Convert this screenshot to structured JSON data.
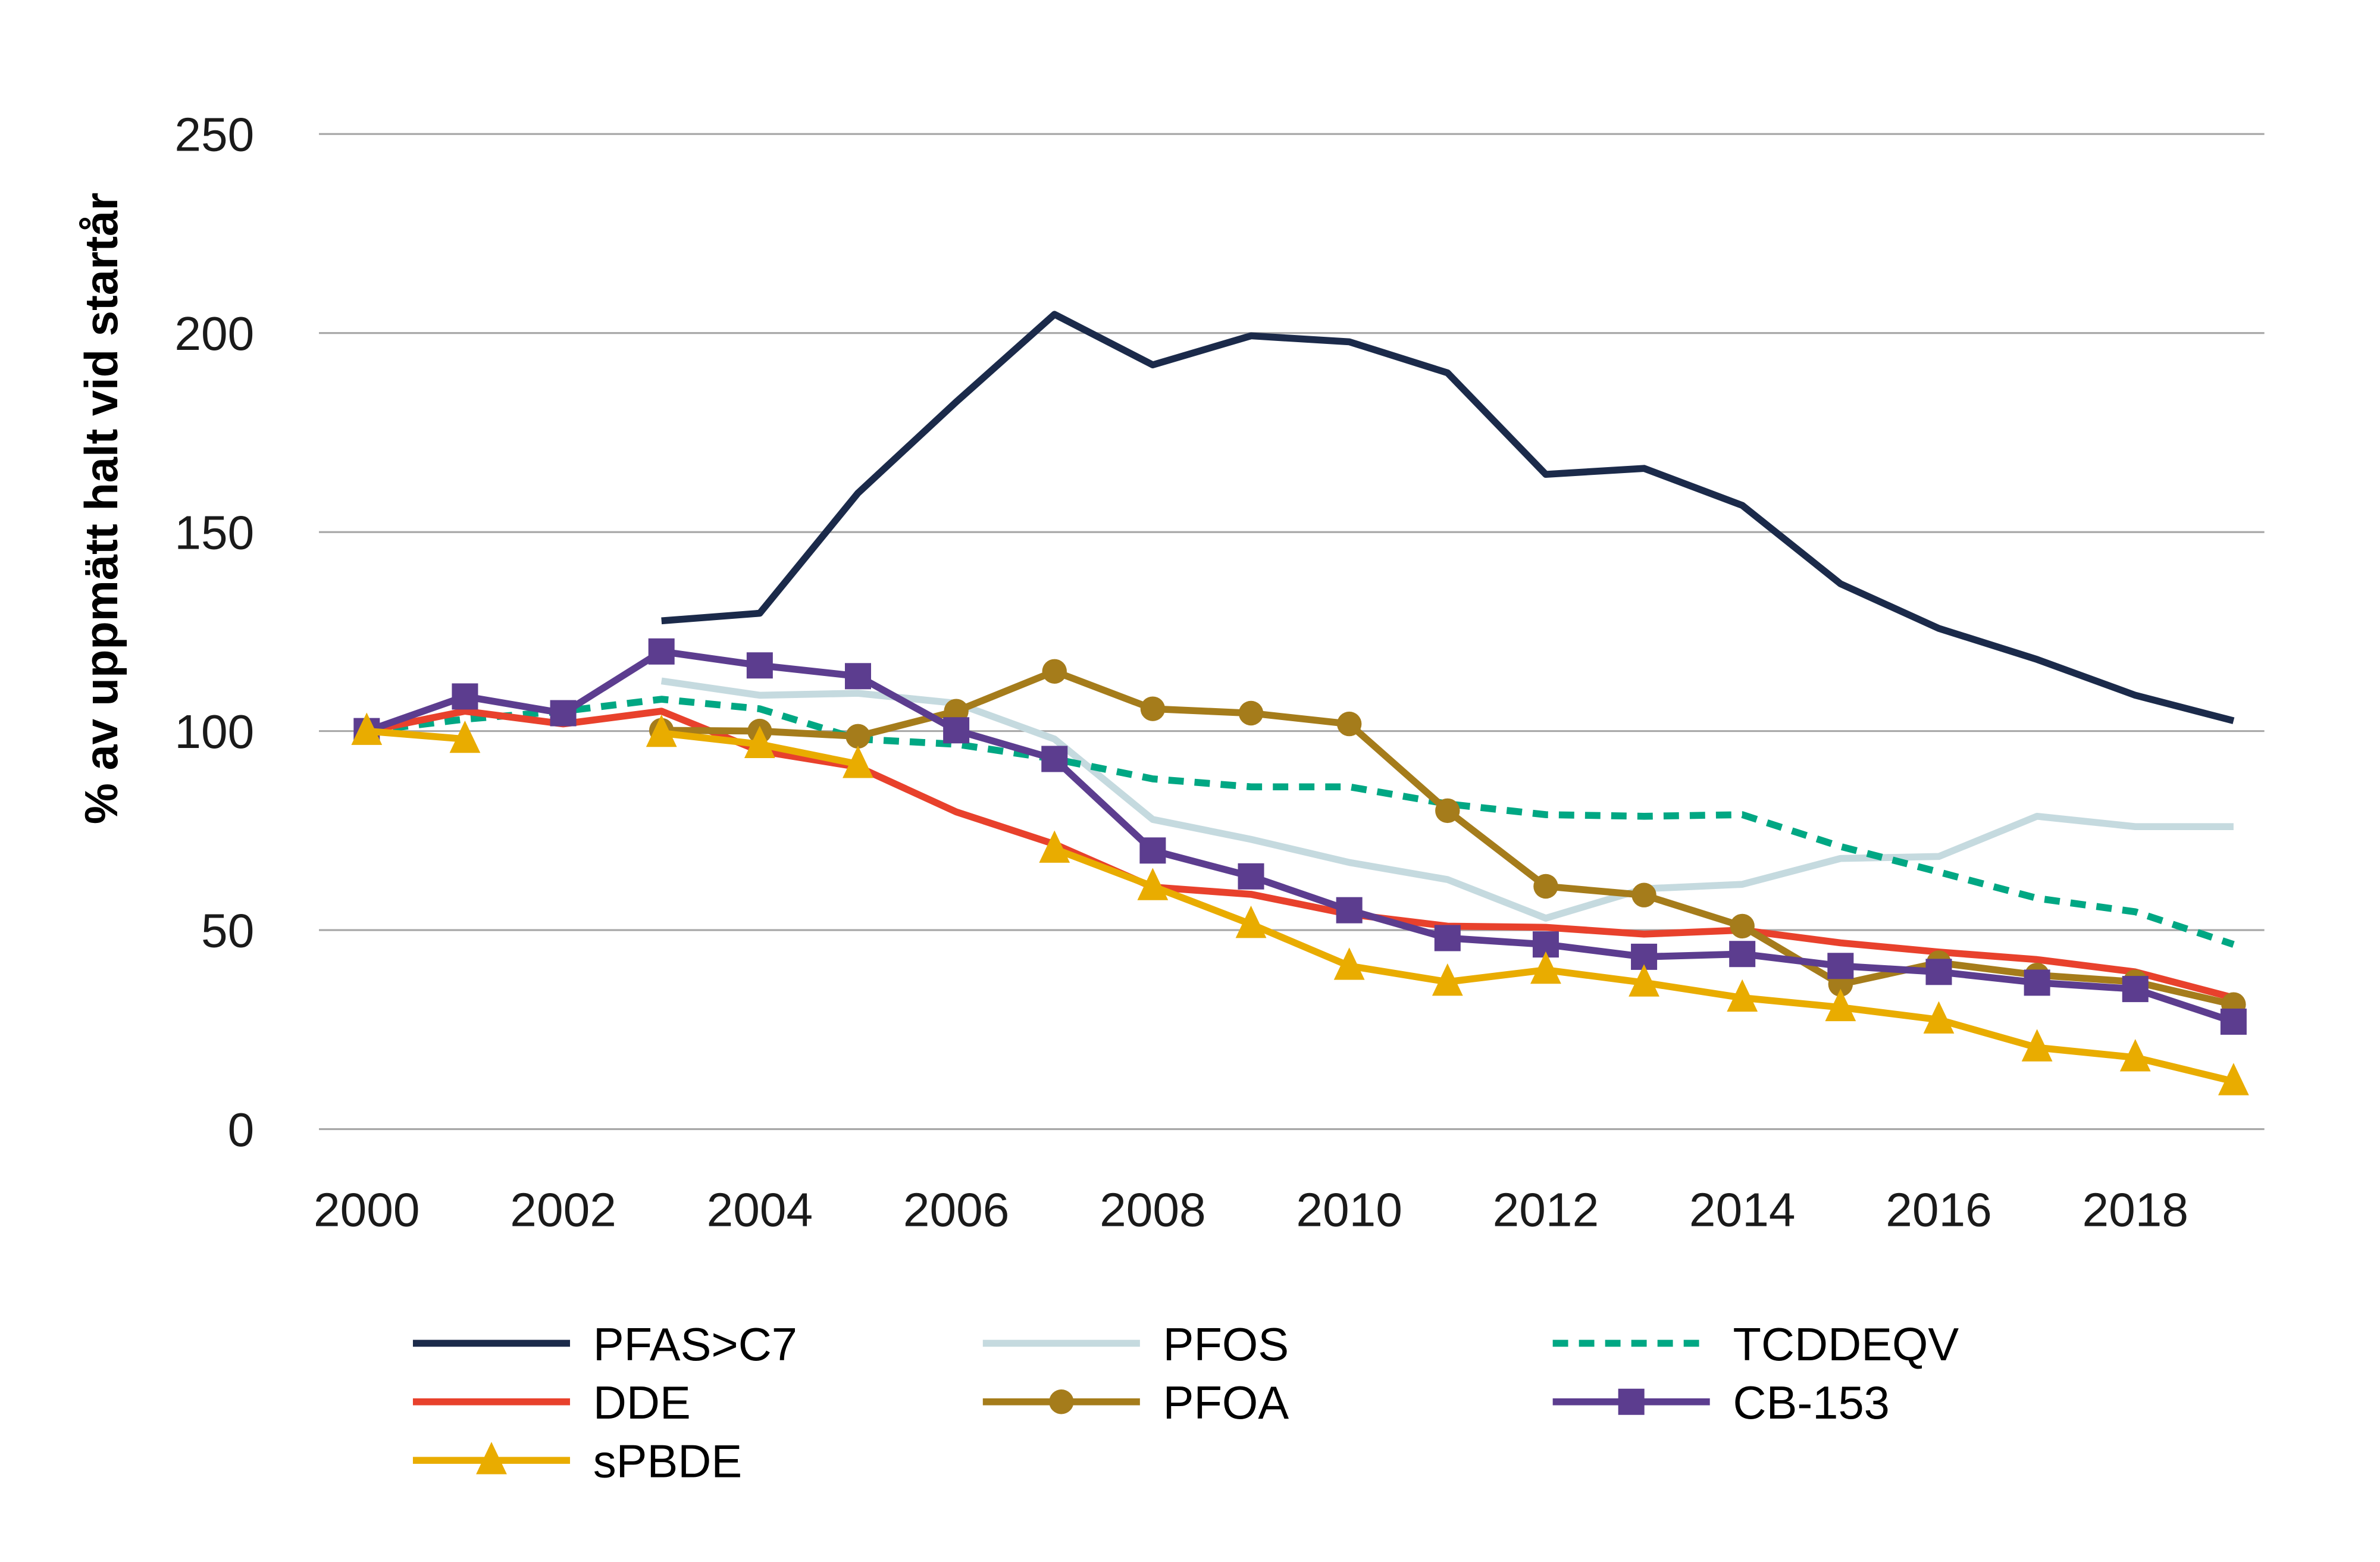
{
  "chart_data": {
    "type": "line",
    "title": "",
    "xlabel": "",
    "ylabel": "% av uppmätt halt vid startår",
    "xlim": [
      2000,
      2019
    ],
    "ylim": [
      0,
      250
    ],
    "yticks": [
      0,
      50,
      100,
      150,
      200,
      250
    ],
    "xticks": [
      2000,
      2002,
      2004,
      2006,
      2008,
      2010,
      2012,
      2014,
      2016,
      2018
    ],
    "grid": "horizontal",
    "legend_position": "bottom",
    "x": [
      2000,
      2001,
      2002,
      2003,
      2004,
      2005,
      2006,
      2007,
      2008,
      2009,
      2010,
      2011,
      2012,
      2013,
      2014,
      2015,
      2016,
      2017,
      2018,
      2019
    ],
    "series": [
      {
        "name": "PFAS>C7",
        "color": "#1b2a4a",
        "marker": "none",
        "dash": false,
        "values": [
          null,
          null,
          null,
          127.7,
          129.6,
          159.8,
          182.7,
          204.7,
          192,
          199.3,
          197.8,
          190,
          164.5,
          166,
          156.7,
          137,
          125.8,
          118,
          109,
          102.6
        ]
      },
      {
        "name": "PFOS",
        "color": "#c5dadf",
        "marker": "none",
        "dash": false,
        "values": [
          null,
          null,
          null,
          112.6,
          109,
          109.5,
          107,
          98,
          77.8,
          72.8,
          67,
          62.7,
          53,
          60.4,
          61.5,
          68,
          68.5,
          78.6,
          76,
          76
        ]
      },
      {
        "name": "TCDDEQV",
        "color": "#00a783",
        "marker": "none",
        "dash": true,
        "values": [
          100,
          103,
          105,
          108,
          105.6,
          98,
          96.7,
          93,
          88,
          86,
          86,
          81.7,
          79,
          78.6,
          79,
          71,
          64.6,
          58,
          54.6,
          46.4
        ]
      },
      {
        "name": "DDE",
        "color": "#e8412c",
        "marker": "none",
        "dash": false,
        "values": [
          100,
          105,
          101.8,
          105,
          95,
          91,
          79.7,
          71.6,
          60.8,
          59,
          54,
          51,
          50.7,
          49,
          50,
          46.8,
          44.5,
          42.6,
          39.5,
          33
        ]
      },
      {
        "name": "PFOA",
        "color": "#a57c1b",
        "marker": "circle",
        "dash": false,
        "values": [
          null,
          null,
          null,
          100.2,
          100,
          98.7,
          105,
          115,
          105.6,
          104.5,
          101.8,
          80,
          61,
          58.8,
          51,
          36.4,
          41.8,
          38.7,
          37,
          31.3
        ]
      },
      {
        "name": "CB-153",
        "color": "#5c3d8f",
        "marker": "square",
        "dash": false,
        "values": [
          100,
          108.7,
          104.5,
          120,
          116.5,
          113.8,
          100.2,
          93,
          70,
          63.5,
          55,
          48,
          46.4,
          43.3,
          44,
          41,
          39.5,
          36.8,
          35.2,
          27
        ]
      },
      {
        "name": "sPBDE",
        "color": "#e9ac00",
        "marker": "triangle",
        "dash": false,
        "values": [
          100,
          98,
          null,
          99.5,
          96.7,
          91.7,
          null,
          70.4,
          61,
          51.5,
          41,
          37,
          40,
          36.8,
          33,
          30.6,
          27.5,
          20.5,
          18,
          12
        ]
      }
    ]
  }
}
